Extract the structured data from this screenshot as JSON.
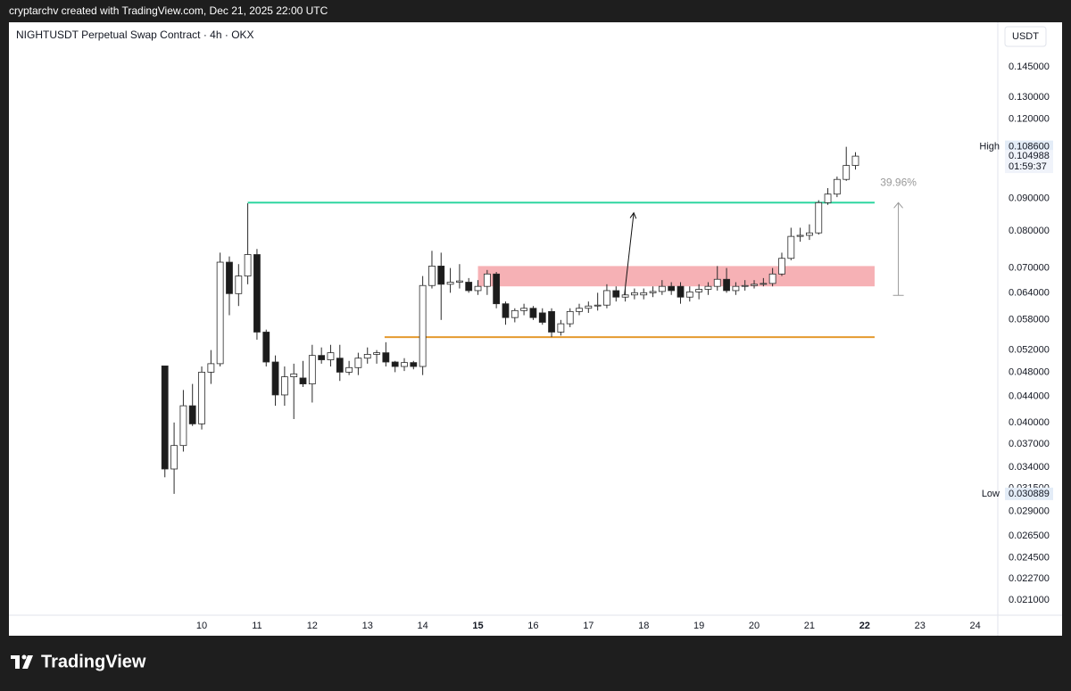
{
  "header": {
    "credit": "cryptarchv created with TradingView.com, Dec 21, 2025 22:00 UTC"
  },
  "footer": {
    "logo": "TradingView"
  },
  "chart_data": {
    "type": "candlestick",
    "title": "NIGHTUSDT Perpetual Swap Contract · 4h · OKX",
    "currency": "USDT",
    "log_scale": true,
    "grid": false,
    "up_color": "#ffffff",
    "down_color": "#1c1c1c",
    "outline_color": "#2a2a2a",
    "x": [
      9.333,
      9.5,
      9.667,
      9.833,
      10,
      10.167,
      10.333,
      10.5,
      10.667,
      10.833,
      11,
      11.167,
      11.333,
      11.5,
      11.667,
      11.833,
      12,
      12.167,
      12.333,
      12.5,
      12.667,
      12.833,
      13,
      13.167,
      13.333,
      13.5,
      13.667,
      13.833,
      14,
      14.167,
      14.333,
      14.5,
      14.667,
      14.833,
      15,
      15.167,
      15.333,
      15.5,
      15.667,
      15.833,
      16,
      16.167,
      16.333,
      16.5,
      16.667,
      16.833,
      17,
      17.167,
      17.333,
      17.5,
      17.667,
      17.833,
      18,
      18.167,
      18.333,
      18.5,
      18.667,
      18.833,
      19,
      19.167,
      19.333,
      19.5,
      19.667,
      19.833,
      20,
      20.167,
      20.333,
      20.5,
      20.667,
      20.833,
      21,
      21.167,
      21.333,
      21.5,
      21.667,
      21.833
    ],
    "open": [
      0.0491,
      0.0338,
      0.0368,
      0.0425,
      0.0398,
      0.048,
      0.0495,
      0.0715,
      0.0638,
      0.068,
      0.0735,
      0.0555,
      0.0498,
      0.0442,
      0.0472,
      0.047,
      0.046,
      0.051,
      0.0502,
      0.0505,
      0.048,
      0.0488,
      0.0505,
      0.0512,
      0.0515,
      0.0498,
      0.049,
      0.0497,
      0.049,
      0.0657,
      0.0705,
      0.066,
      0.0665,
      0.0665,
      0.0645,
      0.0655,
      0.0685,
      0.0615,
      0.0585,
      0.06,
      0.0605,
      0.0595,
      0.0598,
      0.0555,
      0.0572,
      0.0598,
      0.0605,
      0.061,
      0.0612,
      0.0645,
      0.063,
      0.0635,
      0.0635,
      0.064,
      0.0643,
      0.0655,
      0.0655,
      0.063,
      0.0642,
      0.0648,
      0.0655,
      0.0672,
      0.0645,
      0.0655,
      0.0657,
      0.066,
      0.0662,
      0.0685,
      0.0725,
      0.0785,
      0.0788,
      0.0795,
      0.0887,
      0.0915,
      0.0965,
      0.1015
    ],
    "high": [
      0.0491,
      0.04,
      0.045,
      0.046,
      0.049,
      0.052,
      0.074,
      0.073,
      0.071,
      0.0885,
      0.075,
      0.056,
      0.051,
      0.049,
      0.0495,
      0.05,
      0.053,
      0.0525,
      0.053,
      0.053,
      0.05,
      0.0515,
      0.0525,
      0.052,
      0.0535,
      0.05,
      0.0505,
      0.05,
      0.068,
      0.0745,
      0.074,
      0.07,
      0.071,
      0.0675,
      0.067,
      0.0695,
      0.069,
      0.062,
      0.0605,
      0.0615,
      0.061,
      0.0605,
      0.0605,
      0.058,
      0.0605,
      0.0615,
      0.062,
      0.064,
      0.066,
      0.0655,
      0.065,
      0.065,
      0.065,
      0.0655,
      0.067,
      0.0665,
      0.0665,
      0.0655,
      0.066,
      0.0665,
      0.0705,
      0.07,
      0.0665,
      0.067,
      0.067,
      0.0675,
      0.07,
      0.074,
      0.081,
      0.081,
      0.082,
      0.0895,
      0.0935,
      0.0975,
      0.1086,
      0.1065
    ],
    "low": [
      0.0328,
      0.030889,
      0.036,
      0.0395,
      0.039,
      0.046,
      0.049,
      0.059,
      0.061,
      0.066,
      0.054,
      0.049,
      0.0425,
      0.0425,
      0.0405,
      0.0455,
      0.043,
      0.0495,
      0.049,
      0.0465,
      0.0475,
      0.0475,
      0.0495,
      0.0495,
      0.049,
      0.048,
      0.0482,
      0.0485,
      0.0475,
      0.065,
      0.058,
      0.064,
      0.065,
      0.064,
      0.0635,
      0.0635,
      0.0605,
      0.057,
      0.0575,
      0.059,
      0.058,
      0.057,
      0.0545,
      0.0548,
      0.0565,
      0.059,
      0.0595,
      0.06,
      0.0605,
      0.062,
      0.062,
      0.0625,
      0.0625,
      0.063,
      0.0635,
      0.0635,
      0.0615,
      0.062,
      0.0625,
      0.0635,
      0.0645,
      0.064,
      0.0635,
      0.0645,
      0.065,
      0.0655,
      0.0655,
      0.068,
      0.072,
      0.077,
      0.0775,
      0.079,
      0.088,
      0.0905,
      0.096,
      0.1
    ],
    "close": [
      0.0338,
      0.0368,
      0.0425,
      0.0398,
      0.048,
      0.0495,
      0.0715,
      0.0638,
      0.068,
      0.0735,
      0.0555,
      0.0498,
      0.0442,
      0.0472,
      0.0477,
      0.046,
      0.051,
      0.0502,
      0.0515,
      0.048,
      0.0488,
      0.0505,
      0.0512,
      0.0515,
      0.0498,
      0.049,
      0.0497,
      0.049,
      0.0657,
      0.0705,
      0.066,
      0.0665,
      0.0668,
      0.0645,
      0.0655,
      0.0685,
      0.0615,
      0.0585,
      0.06,
      0.0605,
      0.0585,
      0.0575,
      0.0555,
      0.0572,
      0.0598,
      0.0605,
      0.061,
      0.0612,
      0.0645,
      0.063,
      0.0635,
      0.064,
      0.064,
      0.0643,
      0.0655,
      0.0645,
      0.063,
      0.0642,
      0.0648,
      0.0655,
      0.0672,
      0.0645,
      0.0655,
      0.0657,
      0.066,
      0.0662,
      0.0685,
      0.0725,
      0.0785,
      0.0788,
      0.0795,
      0.0887,
      0.0915,
      0.0965,
      0.1015,
      0.104988
    ],
    "xlim": [
      6.51,
      24.41
    ],
    "xticks": [
      10,
      11,
      12,
      13,
      14,
      15,
      16,
      17,
      18,
      19,
      20,
      21,
      22,
      23,
      24
    ],
    "x_bold_ticks": [
      15,
      22
    ],
    "ylim": [
      0.0199,
      0.1705
    ],
    "yticks": [
      {
        "value": 0.145,
        "label": "0.145000"
      },
      {
        "value": 0.13,
        "label": "0.130000"
      },
      {
        "value": 0.12,
        "label": "0.120000"
      },
      {
        "value": 0.09,
        "label": "0.090000"
      },
      {
        "value": 0.08,
        "label": "0.080000"
      },
      {
        "value": 0.07,
        "label": "0.070000"
      },
      {
        "value": 0.064,
        "label": "0.064000"
      },
      {
        "value": 0.058,
        "label": "0.058000"
      },
      {
        "value": 0.052,
        "label": "0.052000"
      },
      {
        "value": 0.048,
        "label": "0.048000"
      },
      {
        "value": 0.044,
        "label": "0.044000"
      },
      {
        "value": 0.04,
        "label": "0.040000"
      },
      {
        "value": 0.037,
        "label": "0.037000"
      },
      {
        "value": 0.034,
        "label": "0.034000"
      },
      {
        "value": 0.0315,
        "label": "0.031500"
      },
      {
        "value": 0.029,
        "label": "0.029000"
      },
      {
        "value": 0.0265,
        "label": "0.026500"
      },
      {
        "value": 0.0245,
        "label": "0.024500"
      },
      {
        "value": 0.0227,
        "label": "0.022700"
      },
      {
        "value": 0.021,
        "label": "0.021000"
      }
    ],
    "high_marker": {
      "name": "High",
      "value": 0.1086,
      "value_label": "0.108600"
    },
    "low_marker": {
      "name": "Low",
      "value": 0.030889,
      "value_label": "0.030889"
    },
    "last_price": {
      "value": 0.104988,
      "value_label": "0.104988",
      "countdown": "01:59:37"
    },
    "drawings": [
      {
        "kind": "hline",
        "price": 0.0887,
        "x": [
          10.833,
          22.18
        ],
        "color": "#2fd6a0"
      },
      {
        "kind": "hline",
        "price": 0.0545,
        "x": [
          13.31,
          22.18
        ],
        "color": "#e59a2f"
      },
      {
        "kind": "zone",
        "prices": [
          0.0705,
          0.0655
        ],
        "x": [
          15.0,
          22.18
        ],
        "color": "#f5a3a8"
      },
      {
        "kind": "arrow",
        "x": [
          17.65,
          17.82
        ],
        "prices": [
          0.0633,
          0.0855
        ],
        "color": "#111111"
      },
      {
        "kind": "measure",
        "x": 22.61,
        "prices": [
          0.0634,
          0.0887
        ],
        "label": "39.96%",
        "color": "#9a9a9a"
      }
    ]
  }
}
